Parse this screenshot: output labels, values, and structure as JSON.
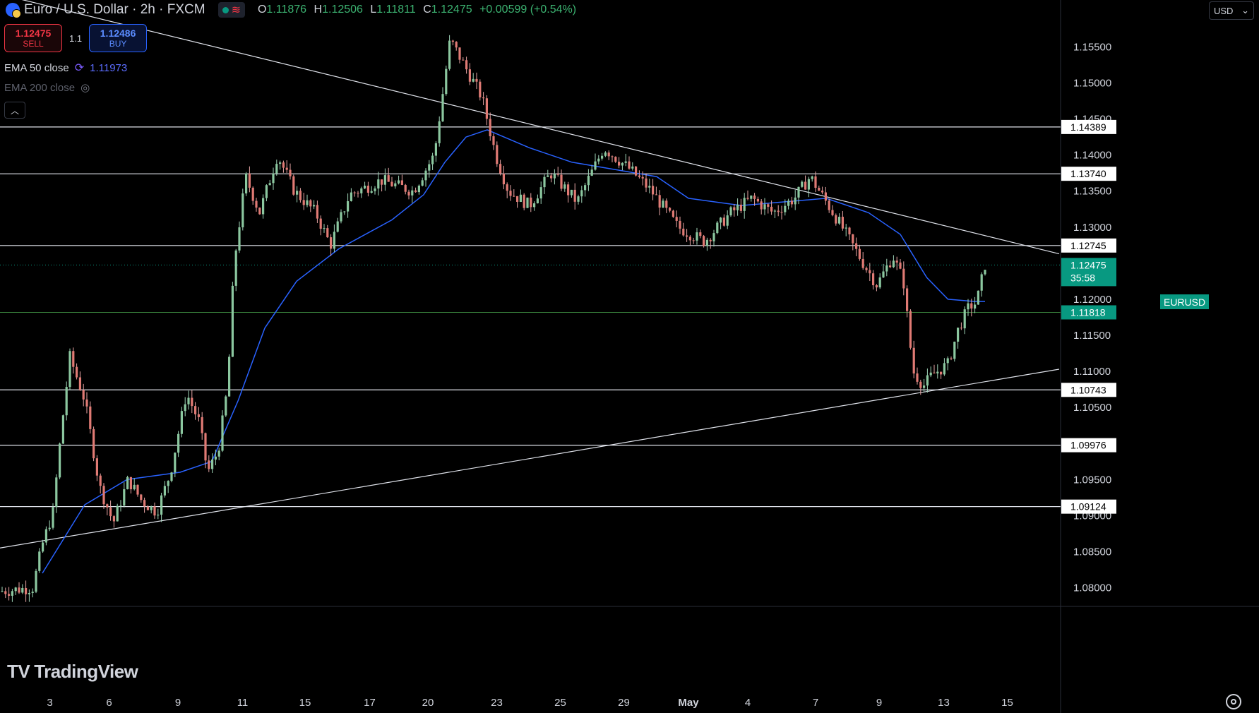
{
  "header": {
    "symbol_title": "Euro / U.S. Dollar · 2h · FXCM",
    "status_wave": "≋",
    "ohlc": {
      "o_label": "O",
      "o": "1.11876",
      "h_label": "H",
      "h": "1.12506",
      "l_label": "L",
      "l": "1.11811",
      "c_label": "C",
      "c": "1.12475",
      "change": "+0.00599 (+0.54%)"
    }
  },
  "trade": {
    "sell_price": "1.12475",
    "sell_label": "SELL",
    "spread": "1.1",
    "buy_price": "1.12486",
    "buy_label": "BUY"
  },
  "indicators": {
    "ema50_label": "EMA 50 close",
    "ema50_value": "1.11973",
    "ema200_label": "EMA 200 close"
  },
  "currency_selector": "USD",
  "brand": "TradingView",
  "colors": {
    "up": "#089981",
    "down": "#f23645",
    "ema50": "#2962ff",
    "line": "#e0e3eb",
    "bg": "#000000",
    "support_green": "#4caf50"
  },
  "chart_data": {
    "type": "candlestick",
    "symbol": "EURUSD",
    "timeframe": "2h",
    "ylim": [
      1.0775,
      1.1615
    ],
    "y_ticks": [
      "1.15500",
      "1.15000",
      "1.14500",
      "1.14000",
      "1.13500",
      "1.13000",
      "1.12500",
      "1.12000",
      "1.11500",
      "1.11000",
      "1.10500",
      "1.10000",
      "1.09500",
      "1.09000",
      "1.08500",
      "1.08000"
    ],
    "x_tick_labels": [
      "3",
      "6",
      "9",
      "11",
      "15",
      "17",
      "20",
      "23",
      "25",
      "29",
      "May",
      "4",
      "7",
      "9",
      "13",
      "15"
    ],
    "horizontal_levels": [
      {
        "label": "1.14389",
        "value": 1.14389
      },
      {
        "label": "1.13740",
        "value": 1.1374
      },
      {
        "label": "1.12745",
        "value": 1.12745
      },
      {
        "label": "1.11818",
        "value": 1.11818,
        "highlight": true
      },
      {
        "label": "1.10743",
        "value": 1.10743
      },
      {
        "label": "1.09976",
        "value": 1.09976
      },
      {
        "label": "1.09124",
        "value": 1.09124
      }
    ],
    "last_price": {
      "symbol": "EURUSD",
      "value": "1.12475",
      "countdown": "35:58",
      "numeric": 1.12475
    },
    "trendlines": [
      {
        "name": "descending-resistance",
        "points": [
          [
            0.0,
            1.1623
          ],
          [
            1.0,
            1.1263
          ]
        ]
      },
      {
        "name": "ascending-support",
        "points": [
          [
            0.0,
            1.0855
          ],
          [
            1.0,
            1.1103
          ]
        ]
      }
    ],
    "price_path": [
      [
        0.0,
        1.0795
      ],
      [
        0.031,
        1.08
      ],
      [
        0.04,
        1.086
      ],
      [
        0.05,
        1.0905
      ],
      [
        0.058,
        1.102
      ],
      [
        0.066,
        1.112
      ],
      [
        0.08,
        1.106
      ],
      [
        0.094,
        1.094
      ],
      [
        0.107,
        1.089
      ],
      [
        0.121,
        1.095
      ],
      [
        0.134,
        1.092
      ],
      [
        0.148,
        1.0905
      ],
      [
        0.161,
        1.096
      ],
      [
        0.176,
        1.107
      ],
      [
        0.188,
        1.103
      ],
      [
        0.196,
        1.096
      ],
      [
        0.206,
        1.099
      ],
      [
        0.215,
        1.108
      ],
      [
        0.221,
        1.125
      ],
      [
        0.232,
        1.137
      ],
      [
        0.245,
        1.132
      ],
      [
        0.262,
        1.14
      ],
      [
        0.278,
        1.135
      ],
      [
        0.298,
        1.132
      ],
      [
        0.312,
        1.1275
      ],
      [
        0.33,
        1.1345
      ],
      [
        0.36,
        1.1365
      ],
      [
        0.39,
        1.135
      ],
      [
        0.41,
        1.14
      ],
      [
        0.425,
        1.156
      ],
      [
        0.44,
        1.152
      ],
      [
        0.455,
        1.148
      ],
      [
        0.468,
        1.14
      ],
      [
        0.48,
        1.135
      ],
      [
        0.5,
        1.133
      ],
      [
        0.52,
        1.1375
      ],
      [
        0.545,
        1.1335
      ],
      [
        0.57,
        1.141
      ],
      [
        0.595,
        1.138
      ],
      [
        0.615,
        1.135
      ],
      [
        0.64,
        1.13
      ],
      [
        0.665,
        1.128
      ],
      [
        0.69,
        1.132
      ],
      [
        0.71,
        1.134
      ],
      [
        0.73,
        1.132
      ],
      [
        0.75,
        1.134
      ],
      [
        0.765,
        1.137
      ],
      [
        0.78,
        1.1335
      ],
      [
        0.795,
        1.13
      ],
      [
        0.815,
        1.125
      ],
      [
        0.828,
        1.122
      ],
      [
        0.843,
        1.126
      ],
      [
        0.853,
        1.1225
      ],
      [
        0.862,
        1.11
      ],
      [
        0.872,
        1.108
      ],
      [
        0.88,
        1.1095
      ],
      [
        0.895,
        1.111
      ],
      [
        0.905,
        1.116
      ],
      [
        0.915,
        1.119
      ],
      [
        0.922,
        1.1195
      ],
      [
        0.93,
        1.1248
      ]
    ],
    "ema50_path": [
      [
        0.04,
        1.082
      ],
      [
        0.08,
        1.0915
      ],
      [
        0.12,
        1.095
      ],
      [
        0.17,
        1.096
      ],
      [
        0.2,
        1.0975
      ],
      [
        0.225,
        1.106
      ],
      [
        0.25,
        1.116
      ],
      [
        0.28,
        1.1225
      ],
      [
        0.32,
        1.127
      ],
      [
        0.37,
        1.131
      ],
      [
        0.4,
        1.1345
      ],
      [
        0.42,
        1.139
      ],
      [
        0.44,
        1.1425
      ],
      [
        0.46,
        1.1435
      ],
      [
        0.5,
        1.141
      ],
      [
        0.54,
        1.139
      ],
      [
        0.58,
        1.138
      ],
      [
        0.62,
        1.137
      ],
      [
        0.65,
        1.134
      ],
      [
        0.7,
        1.133
      ],
      [
        0.74,
        1.1335
      ],
      [
        0.78,
        1.134
      ],
      [
        0.82,
        1.132
      ],
      [
        0.85,
        1.129
      ],
      [
        0.875,
        1.123
      ],
      [
        0.895,
        1.12
      ],
      [
        0.92,
        1.1197
      ],
      [
        0.93,
        1.1197
      ]
    ]
  }
}
